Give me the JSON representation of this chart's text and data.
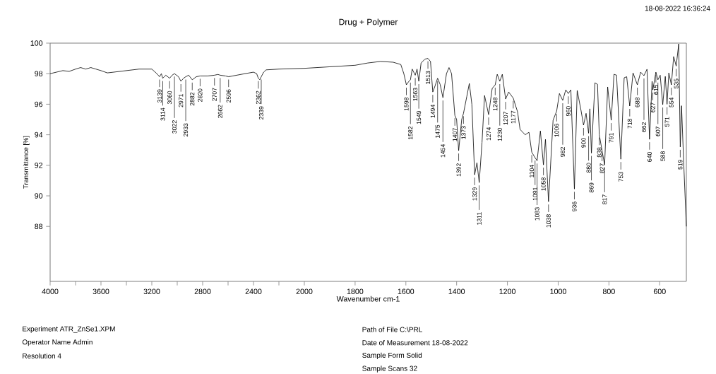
{
  "chart_data": [
    {
      "type": "line",
      "ylabel": "Transmittance [%]",
      "xlim": [
        4000,
        2000
      ],
      "ylim": [
        84.4,
        100
      ],
      "xticks": [
        4000,
        {
          "value": 3800,
          "label": null
        },
        3600,
        {
          "value": 3400,
          "label": null
        },
        3200,
        {
          "value": 3000,
          "label": null
        },
        2800,
        {
          "value": 2600,
          "label": null
        },
        2400,
        {
          "value": 2200,
          "label": null
        },
        2000
      ],
      "yticks": [
        88,
        90,
        92,
        94,
        96,
        98,
        100
      ],
      "series": [
        {
          "color": "#000000",
          "x": [
            4000,
            3950,
            3900,
            3850,
            3800,
            3760,
            3720,
            3680,
            3640,
            3600,
            3550,
            3500,
            3400,
            3300,
            3200,
            3160,
            3139,
            3125,
            3114,
            3090,
            3060,
            3040,
            3022,
            2990,
            2971,
            2950,
            2933,
            2910,
            2882,
            2850,
            2820,
            2760,
            2707,
            2680,
            2662,
            2620,
            2596,
            2500,
            2400,
            2375,
            2362,
            2350,
            2339,
            2320,
            2300,
            2200,
            2000
          ],
          "values": [
            98.0,
            98.1,
            98.2,
            98.15,
            98.3,
            98.4,
            98.3,
            98.4,
            98.3,
            98.2,
            98.05,
            98.1,
            98.2,
            98.3,
            98.3,
            98.0,
            97.8,
            98.0,
            97.7,
            97.9,
            97.7,
            97.9,
            98.0,
            97.8,
            97.5,
            97.7,
            97.8,
            97.9,
            97.6,
            97.8,
            97.85,
            97.85,
            97.9,
            97.95,
            97.9,
            97.85,
            97.8,
            97.95,
            98.1,
            98.0,
            97.7,
            97.6,
            97.8,
            98.1,
            98.25,
            98.3,
            98.35
          ]
        }
      ],
      "annotations": [
        "Experiment ATR_ZnSe1.XPM",
        "Operator Name Admin",
        "Resolution 4",
        {
          "text": "3139",
          "x": 3139,
          "y": 97.8
        },
        {
          "text": "3114",
          "x": 3114,
          "y": 97.7
        },
        {
          "text": "3060",
          "x": 3060,
          "y": 97.7
        },
        {
          "text": "3022",
          "x": 3022,
          "y": 98.0
        },
        {
          "text": "2971",
          "x": 2971,
          "y": 97.5
        },
        {
          "text": "2933",
          "x": 2933,
          "y": 97.8
        },
        {
          "text": "2882",
          "x": 2882,
          "y": 97.6
        },
        {
          "text": "2820",
          "x": 2820,
          "y": 97.85
        },
        {
          "text": "2707",
          "x": 2707,
          "y": 97.9
        },
        {
          "text": "2662",
          "x": 2662,
          "y": 97.9
        },
        {
          "text": "2596",
          "x": 2596,
          "y": 97.8
        },
        {
          "text": "2362",
          "x": 2362,
          "y": 97.7
        },
        {
          "text": "2339",
          "x": 2339,
          "y": 97.8
        }
      ]
    },
    {
      "type": "line",
      "title": "Drug + Polymer",
      "xlabel": "Wavenumber cm-1",
      "xlim": [
        2000,
        495
      ],
      "ylim": [
        84.4,
        100
      ],
      "tick_labels": "x",
      "xticks": [
        1800,
        1600,
        1400,
        1200,
        1000,
        800,
        600
      ],
      "series": [
        {
          "color": "#000000",
          "x": [
            2000,
            1900,
            1800,
            1750,
            1700,
            1650,
            1620,
            1608,
            1598,
            1588,
            1582,
            1575,
            1563,
            1556,
            1549,
            1540,
            1525,
            1513,
            1503,
            1494,
            1485,
            1475,
            1465,
            1454,
            1440,
            1430,
            1420,
            1407,
            1400,
            1392,
            1380,
            1373,
            1360,
            1350,
            1340,
            1329,
            1320,
            1311,
            1300,
            1290,
            1274,
            1260,
            1248,
            1240,
            1230,
            1220,
            1207,
            1195,
            1177,
            1160,
            1150,
            1130,
            1115,
            1104,
            1091,
            1083,
            1070,
            1058,
            1050,
            1038,
            1020,
            1006,
            995,
            982,
            970,
            960,
            950,
            936,
            925,
            910,
            900,
            890,
            880,
            875,
            869,
            855,
            845,
            838,
            827,
            817,
            805,
            791,
            780,
            770,
            753,
            740,
            730,
            718,
            705,
            688,
            675,
            662,
            650,
            640,
            630,
            627,
            615,
            607,
            598,
            588,
            578,
            571,
            564,
            554,
            545,
            535,
            525,
            519,
            514,
            505,
            495
          ],
          "values": [
            98.35,
            98.45,
            98.55,
            98.7,
            98.8,
            98.75,
            98.6,
            98.0,
            97.27,
            97.5,
            97.6,
            98.3,
            97.9,
            98.3,
            97.5,
            98.7,
            98.95,
            99.0,
            98.8,
            96.8,
            97.2,
            97.7,
            97.3,
            96.43,
            98.0,
            98.4,
            98.0,
            95.27,
            95.0,
            92.96,
            95.0,
            95.4,
            96.5,
            97.36,
            96.0,
            91.38,
            92.17,
            90.87,
            93.5,
            96.57,
            95.32,
            97.03,
            97.27,
            97.96,
            97.5,
            97.96,
            96.34,
            96.8,
            96.4,
            95.5,
            94.35,
            94.0,
            94.16,
            92.86,
            92.5,
            92.3,
            94.25,
            92.03,
            93.7,
            89.62,
            94.95,
            95.55,
            96.7,
            96.25,
            96.94,
            96.7,
            96.94,
            90.45,
            96.9,
            95.6,
            94.63,
            95.4,
            94.1,
            95.7,
            92.8,
            97.4,
            97.3,
            94.0,
            92.95,
            92.03,
            97.13,
            94.95,
            97.96,
            97.9,
            92.4,
            97.73,
            97.8,
            95.88,
            98.05,
            97.27,
            98.1,
            97.87,
            98.29,
            93.7,
            97.5,
            96.94,
            98.1,
            97.6,
            97.9,
            95.97,
            97.82,
            96.0,
            98.05,
            97.27,
            99.12,
            98.5,
            99.95,
            93.2,
            95.9,
            92.0,
            88.0
          ]
        }
      ],
      "annotations": [
        "18-08-2022  16:36:24",
        "Path of File C:\\PRL",
        "Date of Measurement 18-08-2022",
        "Sample Form Solid",
        "Sample Scans 32",
        {
          "text": "1598",
          "x": 1598,
          "y": 97.27
        },
        {
          "text": "1582",
          "x": 1582,
          "y": 97.6
        },
        {
          "text": "1563",
          "x": 1563,
          "y": 97.9
        },
        {
          "text": "1549",
          "x": 1549,
          "y": 97.5
        },
        {
          "text": "1513",
          "x": 1513,
          "y": 99.0
        },
        {
          "text": "1494",
          "x": 1494,
          "y": 96.8
        },
        {
          "text": "1475",
          "x": 1475,
          "y": 97.7
        },
        {
          "text": "1454",
          "x": 1454,
          "y": 96.43
        },
        {
          "text": "1407",
          "x": 1407,
          "y": 95.27
        },
        {
          "text": "1392",
          "x": 1392,
          "y": 92.96
        },
        {
          "text": "1373",
          "x": 1373,
          "y": 95.4
        },
        {
          "text": "1329",
          "x": 1329,
          "y": 91.38
        },
        {
          "text": "1311",
          "x": 1311,
          "y": 90.87
        },
        {
          "text": "1274",
          "x": 1274,
          "y": 95.32
        },
        {
          "text": "1248",
          "x": 1248,
          "y": 97.27
        },
        {
          "text": "1230",
          "x": 1230,
          "y": 97.5
        },
        {
          "text": "1207",
          "x": 1207,
          "y": 96.34
        },
        {
          "text": "1177",
          "x": 1177,
          "y": 96.4
        },
        {
          "text": "1104",
          "x": 1104,
          "y": 92.86
        },
        {
          "text": "1091",
          "x": 1091,
          "y": 92.5
        },
        {
          "text": "1083",
          "x": 1083,
          "y": 92.3
        },
        {
          "text": "1058",
          "x": 1058,
          "y": 92.03
        },
        {
          "text": "1038",
          "x": 1038,
          "y": 89.62
        },
        {
          "text": "1006",
          "x": 1006,
          "y": 95.55
        },
        {
          "text": "982",
          "x": 982,
          "y": 96.25
        },
        {
          "text": "960",
          "x": 960,
          "y": 96.7
        },
        {
          "text": "936",
          "x": 936,
          "y": 90.45
        },
        {
          "text": "900",
          "x": 900,
          "y": 94.63
        },
        {
          "text": "880",
          "x": 880,
          "y": 94.1
        },
        {
          "text": "869",
          "x": 869,
          "y": 92.8
        },
        {
          "text": "838",
          "x": 838,
          "y": 94.0
        },
        {
          "text": "827",
          "x": 827,
          "y": 92.95
        },
        {
          "text": "817",
          "x": 817,
          "y": 92.03
        },
        {
          "text": "791",
          "x": 791,
          "y": 94.95
        },
        {
          "text": "753",
          "x": 753,
          "y": 92.4
        },
        {
          "text": "718",
          "x": 718,
          "y": 95.88
        },
        {
          "text": "688",
          "x": 688,
          "y": 97.27
        },
        {
          "text": "662",
          "x": 662,
          "y": 97.87
        },
        {
          "text": "640",
          "x": 640,
          "y": 93.7
        },
        {
          "text": "627",
          "x": 627,
          "y": 96.94
        },
        {
          "text": "615",
          "x": 615,
          "y": 98.1
        },
        {
          "text": "607",
          "x": 607,
          "y": 97.6
        },
        {
          "text": "588",
          "x": 588,
          "y": 95.97
        },
        {
          "text": "571",
          "x": 571,
          "y": 96.0
        },
        {
          "text": "554",
          "x": 554,
          "y": 97.27
        },
        {
          "text": "535",
          "x": 535,
          "y": 98.5
        },
        {
          "text": "519",
          "x": 519,
          "y": 93.2
        }
      ]
    }
  ]
}
